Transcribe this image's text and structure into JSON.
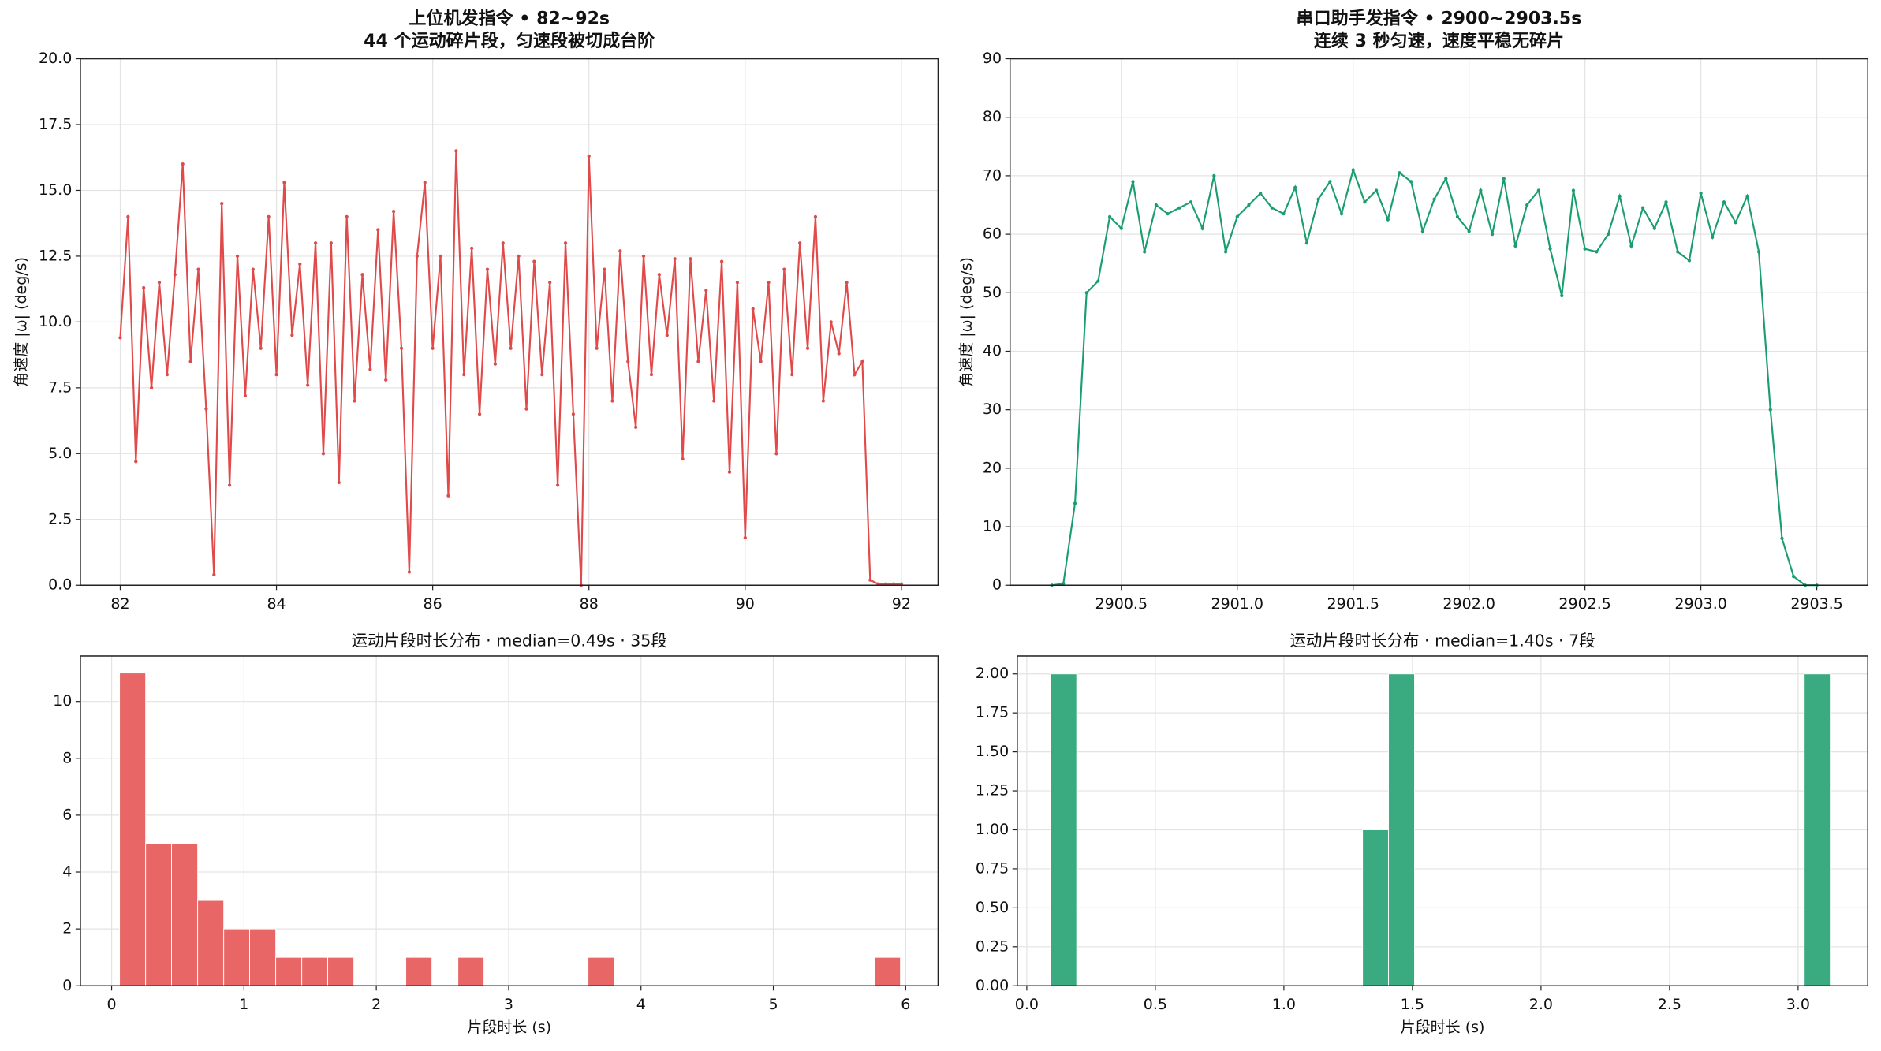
{
  "chart_data": [
    {
      "type": "line",
      "title": "上位机发指令 • 82~92s",
      "subtitle": "44 个运动碎片段，匀速段被切成台阶",
      "ylabel": "角速度 |ω| (deg/s)",
      "color": "#e04a4a",
      "grid": true,
      "xlim": [
        81.49,
        92.47
      ],
      "ylim": [
        0,
        20
      ],
      "xticks": [
        82,
        84,
        86,
        88,
        90,
        92
      ],
      "yticks": [
        {
          "value": 0,
          "label": "0.0"
        },
        2.5,
        {
          "value": 5,
          "label": "5.0"
        },
        7.5,
        {
          "value": 10,
          "label": "10.0"
        },
        12.5,
        {
          "value": 15,
          "label": "15.0"
        },
        17.5,
        {
          "value": 20,
          "label": "20.0"
        }
      ],
      "x": [
        82.0,
        82.1,
        82.2,
        82.3,
        82.4,
        82.5,
        82.6,
        82.7,
        82.8,
        82.9,
        83.0,
        83.1,
        83.2,
        83.3,
        83.4,
        83.5,
        83.6,
        83.7,
        83.8,
        83.9,
        84.0,
        84.1,
        84.2,
        84.3,
        84.4,
        84.5,
        84.6,
        84.7,
        84.8,
        84.9,
        85.0,
        85.1,
        85.2,
        85.3,
        85.4,
        85.5,
        85.6,
        85.7,
        85.8,
        85.9,
        86.0,
        86.1,
        86.2,
        86.3,
        86.4,
        86.5,
        86.6,
        86.7,
        86.8,
        86.9,
        87.0,
        87.1,
        87.2,
        87.3,
        87.4,
        87.5,
        87.6,
        87.7,
        87.8,
        87.9,
        88.0,
        88.1,
        88.2,
        88.3,
        88.4,
        88.5,
        88.6,
        88.7,
        88.8,
        88.9,
        89.0,
        89.1,
        89.2,
        89.3,
        89.4,
        89.5,
        89.6,
        89.7,
        89.8,
        89.9,
        90.0,
        90.1,
        90.2,
        90.3,
        90.4,
        90.5,
        90.6,
        90.7,
        90.8,
        90.9,
        91.0,
        91.1,
        91.2,
        91.3,
        91.4,
        91.5,
        91.6,
        91.7,
        91.8,
        91.9,
        92.0
      ],
      "values": [
        9.4,
        14.0,
        4.7,
        11.3,
        7.5,
        11.5,
        8.0,
        11.8,
        16.0,
        8.5,
        12.0,
        6.7,
        0.4,
        14.5,
        3.8,
        12.5,
        7.2,
        12.0,
        9.0,
        14.0,
        8.0,
        15.3,
        9.5,
        12.2,
        7.6,
        13.0,
        5.0,
        13.0,
        3.9,
        14.0,
        7.0,
        11.8,
        8.2,
        13.5,
        7.8,
        14.2,
        9.0,
        0.5,
        12.5,
        15.3,
        9.0,
        12.5,
        3.4,
        16.5,
        8.0,
        12.8,
        6.5,
        12.0,
        8.4,
        13.0,
        9.0,
        12.5,
        6.7,
        12.3,
        8.0,
        11.5,
        3.8,
        13.0,
        6.5,
        0.0,
        16.3,
        9.0,
        12.0,
        7.0,
        12.7,
        8.5,
        6.0,
        12.5,
        8.0,
        11.8,
        9.5,
        12.4,
        4.8,
        12.4,
        8.5,
        11.2,
        7.0,
        12.3,
        4.3,
        11.5,
        1.8,
        10.5,
        8.5,
        11.5,
        5.0,
        12.0,
        8.0,
        13.0,
        9.0,
        14.0,
        7.0,
        10.0,
        8.8,
        11.5,
        8.0,
        8.5,
        0.2,
        0.05,
        0.05,
        0.05,
        0.05
      ]
    },
    {
      "type": "line",
      "title": "串口助手发指令 • 2900~2903.5s",
      "subtitle": "连续 3 秒匀速，速度平稳无碎片",
      "ylabel": "角速度 |ω| (deg/s)",
      "color": "#1a9e6e",
      "grid": true,
      "xlim": [
        2900.02,
        2903.72
      ],
      "ylim": [
        0,
        90
      ],
      "xticks": [
        2900.5,
        {
          "value": 2901,
          "label": "2901.0"
        },
        2901.5,
        {
          "value": 2902,
          "label": "2902.0"
        },
        2902.5,
        {
          "value": 2903,
          "label": "2903.0"
        },
        2903.5
      ],
      "yticks": [
        0,
        10,
        20,
        30,
        40,
        50,
        60,
        70,
        80,
        90
      ],
      "x": [
        2900.2,
        2900.25,
        2900.3,
        2900.35,
        2900.4,
        2900.45,
        2900.5,
        2900.55,
        2900.6,
        2900.65,
        2900.7,
        2900.75,
        2900.8,
        2900.85,
        2900.9,
        2900.95,
        2901.0,
        2901.05,
        2901.1,
        2901.15,
        2901.2,
        2901.25,
        2901.3,
        2901.35,
        2901.4,
        2901.45,
        2901.5,
        2901.55,
        2901.6,
        2901.65,
        2901.7,
        2901.75,
        2901.8,
        2901.85,
        2901.9,
        2901.95,
        2902.0,
        2902.05,
        2902.1,
        2902.15,
        2902.2,
        2902.25,
        2902.3,
        2902.35,
        2902.4,
        2902.45,
        2902.5,
        2902.55,
        2902.6,
        2902.65,
        2902.7,
        2902.75,
        2902.8,
        2902.85,
        2902.9,
        2902.95,
        2903.0,
        2903.05,
        2903.1,
        2903.15,
        2903.2,
        2903.25,
        2903.3,
        2903.35,
        2903.4,
        2903.45,
        2903.5
      ],
      "values": [
        0,
        0.3,
        14,
        50,
        52,
        63,
        61,
        69,
        57,
        65,
        63.5,
        64.5,
        65.5,
        61,
        70,
        57,
        63,
        65,
        67,
        64.5,
        63.5,
        68,
        58.5,
        66,
        69,
        63.5,
        71,
        65.5,
        67.5,
        62.5,
        70.5,
        69,
        60.5,
        66,
        69.5,
        63,
        60.5,
        67.5,
        60,
        69.5,
        58,
        65,
        67.5,
        57.5,
        49.5,
        67.5,
        57.5,
        57,
        60,
        66.5,
        58,
        64.5,
        61,
        65.5,
        57,
        55.5,
        67,
        59.5,
        65.5,
        62,
        66.5,
        57,
        30,
        8,
        1.5,
        0,
        0
      ]
    },
    {
      "type": "histogram",
      "title": "运动片段时长分布 · median=0.49s · 35段",
      "xlabel": "片段时长 (s)",
      "color": "#e86666",
      "grid": true,
      "xlim": [
        -0.236,
        6.245
      ],
      "ylim": [
        0,
        11.6
      ],
      "xticks": [
        0,
        1,
        2,
        3,
        4,
        5,
        6
      ],
      "yticks": [
        0,
        2,
        4,
        6,
        8,
        10
      ],
      "bins": [
        0.06,
        0.257,
        0.453,
        0.65,
        0.847,
        1.043,
        1.24,
        1.437,
        1.633,
        1.83,
        2.027,
        2.223,
        2.42,
        2.617,
        2.813,
        3.01,
        3.207,
        3.403,
        3.6,
        3.797,
        3.993,
        4.19,
        4.387,
        4.583,
        4.78,
        4.977,
        5.173,
        5.37,
        5.567,
        5.763,
        5.96
      ],
      "counts": [
        11,
        5,
        5,
        3,
        2,
        2,
        1,
        1,
        1,
        0,
        0,
        1,
        0,
        1,
        0,
        0,
        0,
        0,
        1,
        0,
        0,
        0,
        0,
        0,
        0,
        0,
        0,
        0,
        0,
        1
      ]
    },
    {
      "type": "histogram",
      "title": "运动片段时长分布 · median=1.40s · 7段",
      "xlabel": "片段时长 (s)",
      "color": "#3aaa80",
      "grid": true,
      "xlim": [
        -0.037,
        3.271
      ],
      "ylim": [
        0,
        2.115
      ],
      "xticks": [
        {
          "value": 0,
          "label": "0.0"
        },
        0.5,
        {
          "value": 1,
          "label": "1.0"
        },
        1.5,
        {
          "value": 2,
          "label": "2.0"
        },
        2.5,
        {
          "value": 3,
          "label": "3.0"
        }
      ],
      "yticks": [
        {
          "value": 0,
          "label": "0.00"
        },
        0.25,
        {
          "value": 0.5,
          "label": "0.50"
        },
        0.75,
        {
          "value": 1,
          "label": "1.00"
        },
        1.25,
        {
          "value": 1.5,
          "label": "1.50"
        },
        1.75,
        {
          "value": 2,
          "label": "2.00"
        }
      ],
      "bins": [
        0.093,
        0.194,
        0.295,
        0.396,
        0.497,
        0.599,
        0.7,
        0.801,
        0.902,
        1.003,
        1.104,
        1.205,
        1.306,
        1.407,
        1.508,
        1.609,
        1.711,
        1.812,
        1.913,
        2.014,
        2.115,
        2.216,
        2.317,
        2.418,
        2.519,
        2.62,
        2.721,
        2.822,
        2.923,
        3.024,
        3.125
      ],
      "counts": [
        2,
        0,
        0,
        0,
        0,
        0,
        0,
        0,
        0,
        0,
        0,
        0,
        1,
        2,
        0,
        0,
        0,
        0,
        0,
        0,
        0,
        0,
        0,
        0,
        0,
        0,
        0,
        0,
        0,
        2
      ]
    }
  ]
}
